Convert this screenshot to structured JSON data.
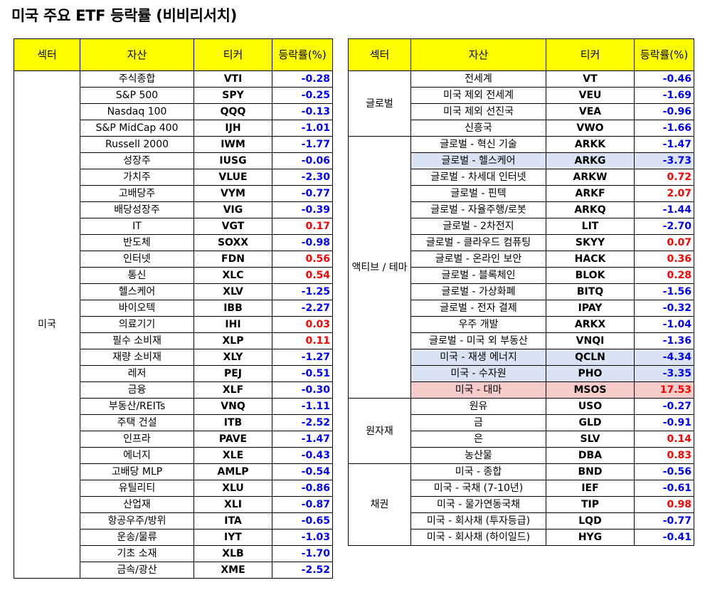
{
  "title": "미국 주요 ETF 등락률 (비비리서치)",
  "headers": {
    "sector": "섹터",
    "asset": "자산",
    "ticker": "티커",
    "change": "등락률(%)"
  },
  "colors": {
    "header_bg": "#ffff00",
    "negative": "#0000ff",
    "positive": "#ff0000",
    "highlight_blue": "#dae3f3",
    "highlight_pink": "#f8cbcb"
  },
  "left_table": {
    "groups": [
      {
        "sector": "미국",
        "rows": [
          {
            "name": "주식종합",
            "ticker": "VTI",
            "change": "-0.28"
          },
          {
            "name": "S&P 500",
            "ticker": "SPY",
            "change": "-0.25"
          },
          {
            "name": "Nasdaq 100",
            "ticker": "QQQ",
            "change": "-0.13"
          },
          {
            "name": "S&P MidCap 400",
            "ticker": "IJH",
            "change": "-1.01"
          },
          {
            "name": "Russell 2000",
            "ticker": "IWM",
            "change": "-1.77"
          },
          {
            "name": "성장주",
            "ticker": "IUSG",
            "change": "-0.06"
          },
          {
            "name": "가치주",
            "ticker": "VLUE",
            "change": "-2.30"
          },
          {
            "name": "고배당주",
            "ticker": "VYM",
            "change": "-0.77"
          },
          {
            "name": "배당성장주",
            "ticker": "VIG",
            "change": "-0.39"
          },
          {
            "name": "IT",
            "ticker": "VGT",
            "change": "0.17"
          },
          {
            "name": "반도체",
            "ticker": "SOXX",
            "change": "-0.98"
          },
          {
            "name": "인터넷",
            "ticker": "FDN",
            "change": "0.56"
          },
          {
            "name": "통신",
            "ticker": "XLC",
            "change": "0.54"
          },
          {
            "name": "헬스케어",
            "ticker": "XLV",
            "change": "-1.25"
          },
          {
            "name": "바이오텍",
            "ticker": "IBB",
            "change": "-2.27"
          },
          {
            "name": "의료기기",
            "ticker": "IHI",
            "change": "0.03"
          },
          {
            "name": "필수 소비재",
            "ticker": "XLP",
            "change": "0.11"
          },
          {
            "name": "재량 소비재",
            "ticker": "XLY",
            "change": "-1.27"
          },
          {
            "name": "레저",
            "ticker": "PEJ",
            "change": "-0.51"
          },
          {
            "name": "금융",
            "ticker": "XLF",
            "change": "-0.30"
          },
          {
            "name": "부동산/REITs",
            "ticker": "VNQ",
            "change": "-1.11"
          },
          {
            "name": "주택 건설",
            "ticker": "ITB",
            "change": "-2.52"
          },
          {
            "name": "인프라",
            "ticker": "PAVE",
            "change": "-1.47"
          },
          {
            "name": "에너지",
            "ticker": "XLE",
            "change": "-0.43"
          },
          {
            "name": "고배당 MLP",
            "ticker": "AMLP",
            "change": "-0.54"
          },
          {
            "name": "유틸리티",
            "ticker": "XLU",
            "change": "-0.86"
          },
          {
            "name": "산업재",
            "ticker": "XLI",
            "change": "-0.87"
          },
          {
            "name": "항공우주/방위",
            "ticker": "ITA",
            "change": "-0.65"
          },
          {
            "name": "운송/물류",
            "ticker": "IYT",
            "change": "-1.03"
          },
          {
            "name": "기초 소재",
            "ticker": "XLB",
            "change": "-1.70"
          },
          {
            "name": "금속/광산",
            "ticker": "XME",
            "change": "-2.52"
          }
        ]
      }
    ]
  },
  "right_table": {
    "groups": [
      {
        "sector": "글로벌",
        "rows": [
          {
            "name": "전세계",
            "ticker": "VT",
            "change": "-0.46"
          },
          {
            "name": "미국 제외 전세계",
            "ticker": "VEU",
            "change": "-1.69"
          },
          {
            "name": "미국 제외 선진국",
            "ticker": "VEA",
            "change": "-0.96"
          },
          {
            "name": "신흥국",
            "ticker": "VWO",
            "change": "-1.66"
          }
        ]
      },
      {
        "sector": "액티브 / 테마",
        "rows": [
          {
            "name": "글로벌 - 혁신 기술",
            "ticker": "ARKK",
            "change": "-1.47"
          },
          {
            "name": "글로벌 - 헬스케어",
            "ticker": "ARKG",
            "change": "-3.73",
            "hl": "blue"
          },
          {
            "name": "글로벌 - 차세대 인터넷",
            "ticker": "ARKW",
            "change": "0.72"
          },
          {
            "name": "글로벌 - 핀텍",
            "ticker": "ARKF",
            "change": "2.07"
          },
          {
            "name": "글로벌 - 자율주행/로봇",
            "ticker": "ARKQ",
            "change": "-1.44"
          },
          {
            "name": "글로벌 - 2차전지",
            "ticker": "LIT",
            "change": "-2.70"
          },
          {
            "name": "글로벌 - 클라우드 컴퓨팅",
            "ticker": "SKYY",
            "change": "0.07"
          },
          {
            "name": "글로벌 - 온라인 보안",
            "ticker": "HACK",
            "change": "0.36"
          },
          {
            "name": "글로벌 - 블록체인",
            "ticker": "BLOK",
            "change": "0.28"
          },
          {
            "name": "글로벌 - 가상화폐",
            "ticker": "BITQ",
            "change": "-1.56"
          },
          {
            "name": "글로벌 - 전자 결제",
            "ticker": "IPAY",
            "change": "-0.32"
          },
          {
            "name": "우주 개발",
            "ticker": "ARKX",
            "change": "-1.04"
          },
          {
            "name": "글로벌 - 미국 외 부동산",
            "ticker": "VNQI",
            "change": "-1.36"
          },
          {
            "name": "미국 - 재생 에너지",
            "ticker": "QCLN",
            "change": "-4.34",
            "hl": "blue"
          },
          {
            "name": "미국 - 수자원",
            "ticker": "PHO",
            "change": "-3.35",
            "hl": "blue"
          },
          {
            "name": "미국 - 대마",
            "ticker": "MSOS",
            "change": "17.53",
            "hl": "pink"
          }
        ]
      },
      {
        "sector": "원자재",
        "rows": [
          {
            "name": "원유",
            "ticker": "USO",
            "change": "-0.27"
          },
          {
            "name": "금",
            "ticker": "GLD",
            "change": "-0.91"
          },
          {
            "name": "은",
            "ticker": "SLV",
            "change": "0.14"
          },
          {
            "name": "농산물",
            "ticker": "DBA",
            "change": "0.83"
          }
        ]
      },
      {
        "sector": "채권",
        "rows": [
          {
            "name": "미국 - 종합",
            "ticker": "BND",
            "change": "-0.56"
          },
          {
            "name": "미국 - 국채 (7-10년)",
            "ticker": "IEF",
            "change": "-0.61"
          },
          {
            "name": "미국 - 물가연동국채",
            "ticker": "TIP",
            "change": "0.98"
          },
          {
            "name": "미국 - 회사채 (투자등급)",
            "ticker": "LQD",
            "change": "-0.77"
          },
          {
            "name": "미국 - 회사채 (하이일드)",
            "ticker": "HYG",
            "change": "-0.41"
          }
        ]
      }
    ]
  }
}
